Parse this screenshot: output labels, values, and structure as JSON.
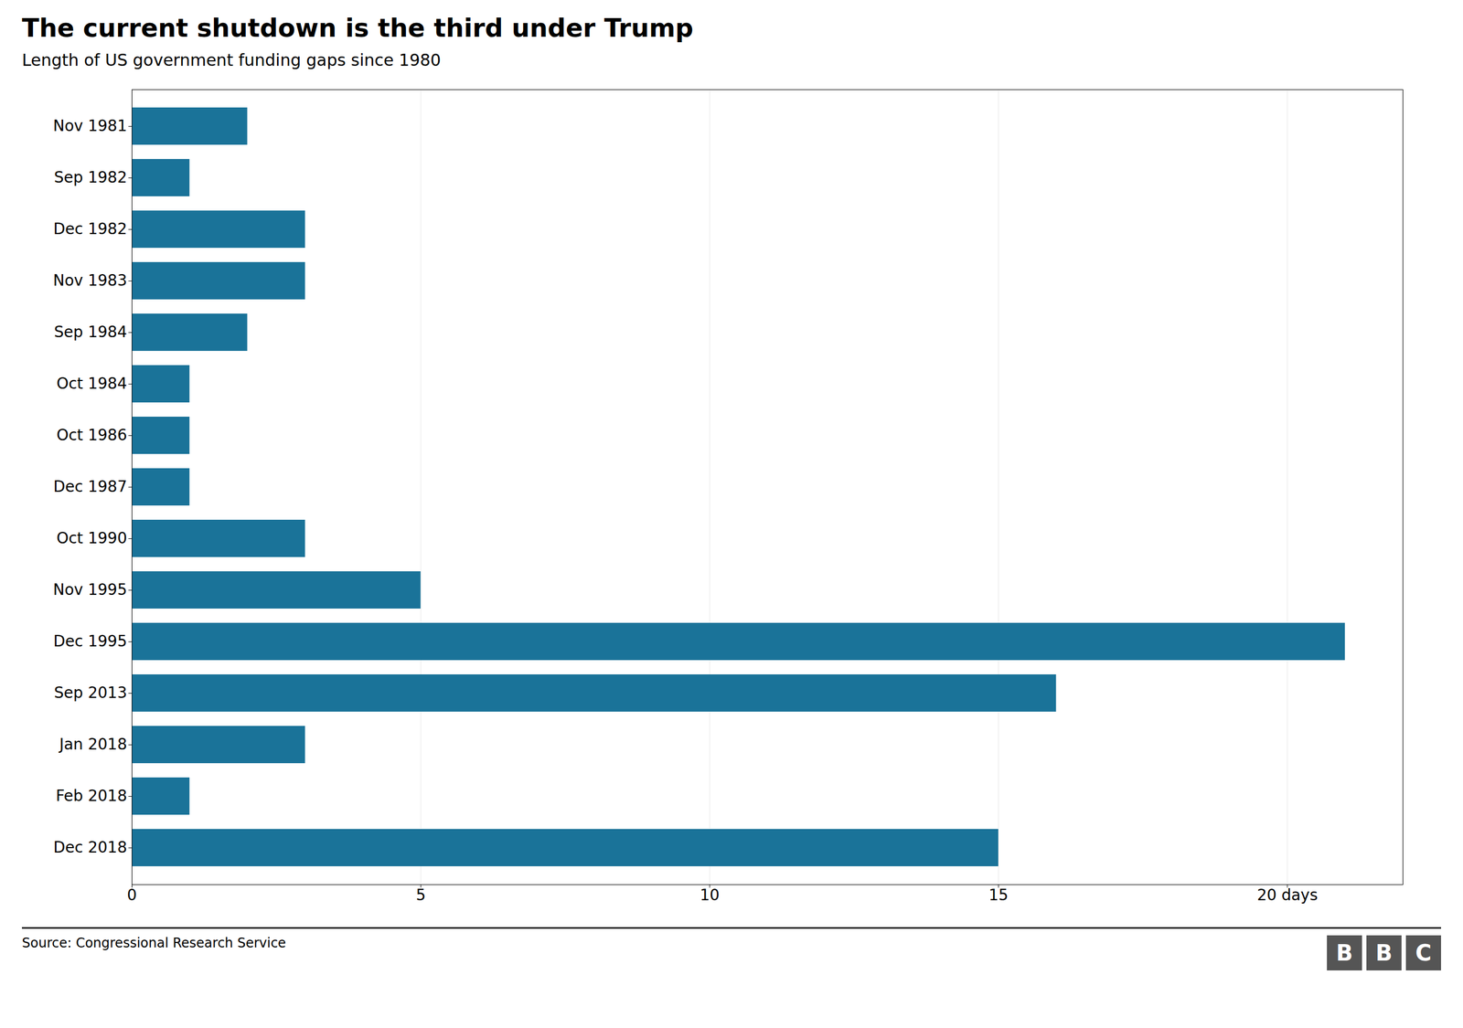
{
  "chart_data": {
    "type": "bar",
    "orientation": "horizontal",
    "title": "The current shutdown is the third under Trump",
    "subtitle": "Length of US government funding gaps since 1980",
    "source": "Source: Congressional Research Service",
    "logo": "BBC",
    "categories": [
      "Nov 1981",
      "Sep 1982",
      "Dec 1982",
      "Nov 1983",
      "Sep 1984",
      "Oct 1984",
      "Oct 1986",
      "Dec 1987",
      "Oct 1990",
      "Nov 1995",
      "Dec 1995",
      "Sep 2013",
      "Jan 2018",
      "Feb 2018",
      "Dec 2018"
    ],
    "values": [
      2,
      1,
      3,
      3,
      2,
      1,
      1,
      1,
      3,
      5,
      21,
      16,
      3,
      1,
      15
    ],
    "color": "#1a7399",
    "xlim": [
      0,
      22
    ],
    "xticks": [
      0,
      5,
      10,
      15,
      {
        "value": 20,
        "label": "20 days"
      }
    ],
    "grid": true
  }
}
